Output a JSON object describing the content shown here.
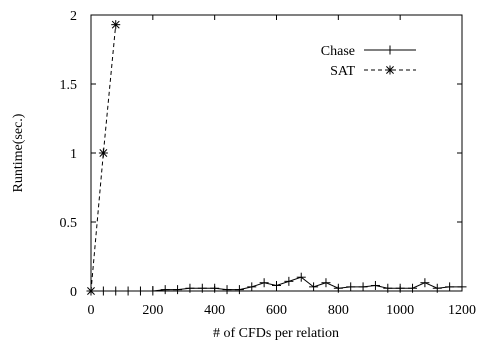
{
  "chart_data": {
    "type": "line",
    "title": "",
    "xlabel": "# of CFDs per relation",
    "ylabel": "Runtime(sec.)",
    "xlim": [
      0,
      1200
    ],
    "ylim": [
      0,
      2
    ],
    "x_ticks": [
      0,
      200,
      400,
      600,
      800,
      1000,
      1200
    ],
    "y_ticks": [
      0,
      0.5,
      1,
      1.5,
      2
    ],
    "x_tick_labels": [
      "0",
      "200",
      "400",
      "600",
      "800",
      "1000",
      "1200"
    ],
    "y_tick_labels": [
      "0",
      "0.5",
      "1",
      "1.5",
      "2"
    ],
    "grid": false,
    "legend_position": "top-right",
    "series": [
      {
        "name": "Chase",
        "line_style": "solid",
        "marker": "plus",
        "x": [
          0,
          40,
          80,
          120,
          160,
          200,
          240,
          280,
          320,
          360,
          400,
          440,
          480,
          520,
          560,
          600,
          640,
          680,
          720,
          760,
          800,
          840,
          880,
          920,
          960,
          1000,
          1040,
          1080,
          1120,
          1160,
          1200
        ],
        "y": [
          0,
          0,
          0,
          0,
          0,
          0,
          0.01,
          0.01,
          0.02,
          0.02,
          0.02,
          0.01,
          0.01,
          0.03,
          0.06,
          0.04,
          0.07,
          0.1,
          0.03,
          0.06,
          0.02,
          0.03,
          0.03,
          0.04,
          0.02,
          0.02,
          0.02,
          0.06,
          0.02,
          0.03,
          0.03
        ]
      },
      {
        "name": "SAT",
        "line_style": "dashed",
        "marker": "star",
        "x": [
          0,
          40,
          80
        ],
        "y": [
          0,
          1.0,
          1.93
        ]
      }
    ]
  }
}
